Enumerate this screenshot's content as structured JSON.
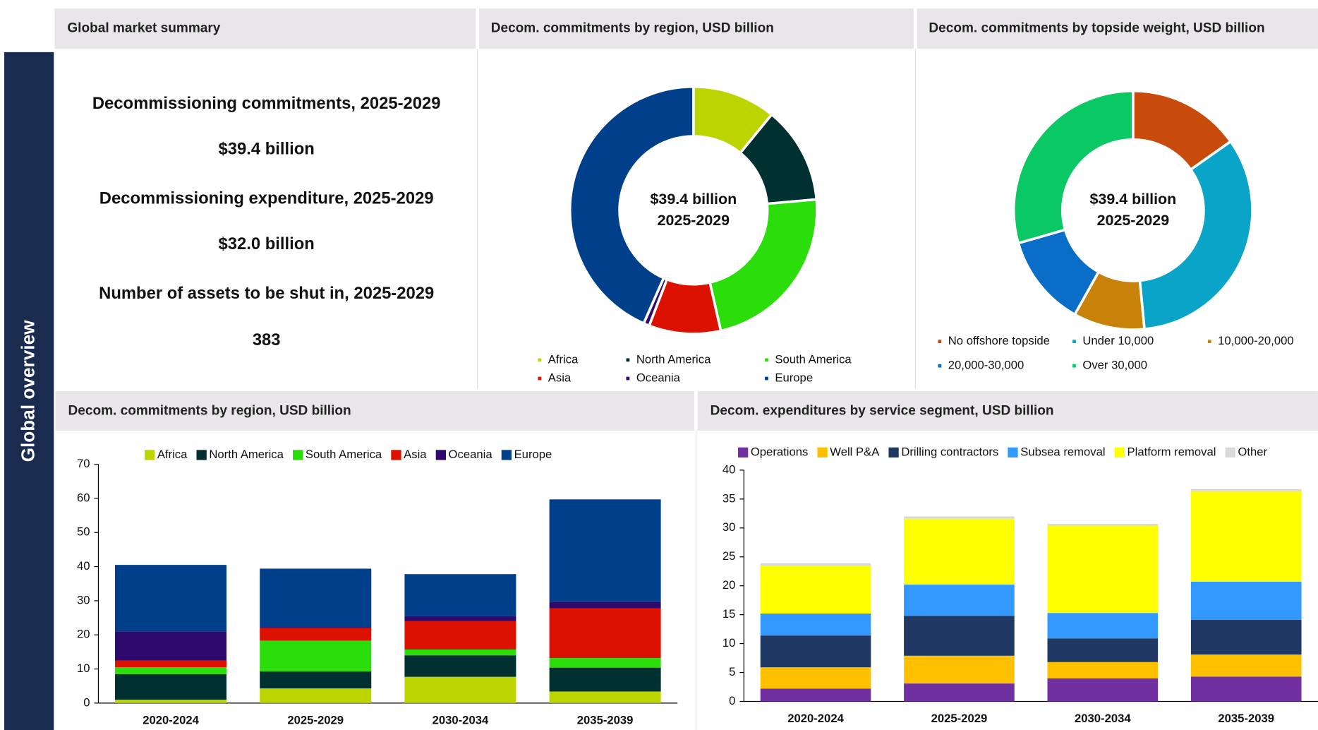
{
  "sidebar": {
    "title": "Global overview"
  },
  "summary": {
    "title": "Global market summary",
    "items": [
      {
        "label": "Decommissioning commitments, 2025-2029",
        "value": "$39.4 billion"
      },
      {
        "label": "Decommissioning expenditure, 2025-2029",
        "value": "$32.0 billion"
      },
      {
        "label": "Number of assets to be shut in, 2025-2029",
        "value": "383"
      }
    ]
  },
  "chart_data": [
    {
      "type": "donut",
      "title": "Decom. commitments by region, USD billion",
      "center_label": [
        "$39.4 billion",
        "2025-2029"
      ],
      "categories": [
        "Africa",
        "North America",
        "South America",
        "Asia",
        "Oceania",
        "Europe"
      ],
      "values": [
        4.3,
        5.0,
        9.0,
        3.7,
        0.3,
        17.1
      ],
      "colors": [
        "#bcd400",
        "#00302f",
        "#2bdd0a",
        "#dd1100",
        "#2e0a6e",
        "#003f8a"
      ]
    },
    {
      "type": "donut",
      "title": "Decom. commitments by topside weight, USD billion",
      "center_label": [
        "$39.4 billion",
        "2025-2029"
      ],
      "categories": [
        "No offshore topside",
        "Under 10,000",
        "10,000-20,000",
        "20,000-30,000",
        "Over 30,000"
      ],
      "values": [
        6.0,
        13.1,
        3.8,
        4.9,
        11.6
      ],
      "colors": [
        "#c84b0c",
        "#0aa4c8",
        "#c8820a",
        "#0a6ec8",
        "#0ac864"
      ]
    },
    {
      "type": "stacked_bar",
      "title": "Decom. commitments by region, USD billion",
      "categories": [
        "2020-2024",
        "2025-2029",
        "2030-2034",
        "2035-2039"
      ],
      "series": [
        {
          "name": "Africa",
          "color": "#bcd400",
          "values": [
            1.0,
            4.3,
            7.7,
            3.4
          ]
        },
        {
          "name": "North America",
          "color": "#00302f",
          "values": [
            7.5,
            5.0,
            6.3,
            7.0
          ]
        },
        {
          "name": "South America",
          "color": "#2bdd0a",
          "values": [
            2.0,
            9.0,
            1.7,
            2.8
          ]
        },
        {
          "name": "Asia",
          "color": "#dd1100",
          "values": [
            2.0,
            3.7,
            8.3,
            14.6
          ]
        },
        {
          "name": "Oceania",
          "color": "#2e0a6e",
          "values": [
            8.5,
            0.3,
            1.5,
            1.9
          ]
        },
        {
          "name": "Europe",
          "color": "#003f8a",
          "values": [
            19.5,
            17.1,
            12.3,
            30.0
          ]
        }
      ],
      "ylim": [
        0,
        70
      ],
      "yticks": [
        0,
        10,
        20,
        30,
        40,
        50,
        60,
        70
      ]
    },
    {
      "type": "stacked_bar",
      "title": "Decom. expenditures by service segment, USD billion",
      "categories": [
        "2020-2024",
        "2025-2029",
        "2030-2034",
        "2035-2039"
      ],
      "series": [
        {
          "name": "Operations",
          "color": "#7030a0",
          "values": [
            2.2,
            3.1,
            4.0,
            4.3
          ]
        },
        {
          "name": "Well P&A",
          "color": "#ffc000",
          "values": [
            3.7,
            4.8,
            2.8,
            3.8
          ]
        },
        {
          "name": "Drilling contractors",
          "color": "#1f3864",
          "values": [
            5.5,
            6.9,
            4.1,
            6.0
          ]
        },
        {
          "name": "Subsea removal",
          "color": "#3399ff",
          "values": [
            3.8,
            5.4,
            4.4,
            6.6
          ]
        },
        {
          "name": "Platform removal",
          "color": "#ffff00",
          "values": [
            8.3,
            11.4,
            15.1,
            15.6
          ]
        },
        {
          "name": "Other",
          "color": "#d9d9d9",
          "values": [
            0.4,
            0.4,
            0.3,
            0.4
          ]
        }
      ],
      "ylim": [
        0,
        40
      ],
      "yticks": [
        0,
        5,
        10,
        15,
        20,
        25,
        30,
        35,
        40
      ]
    }
  ]
}
